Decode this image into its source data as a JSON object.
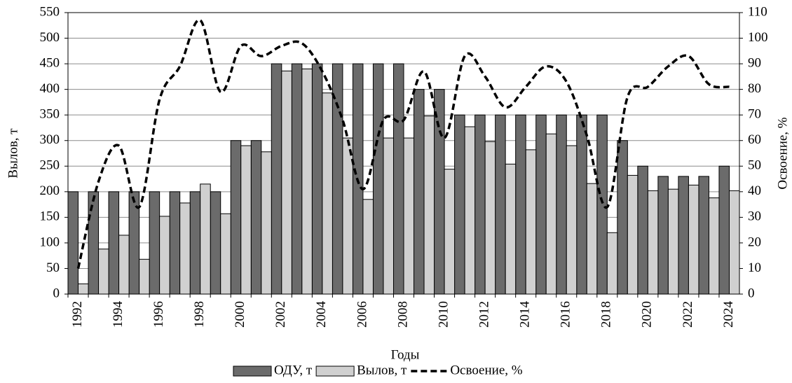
{
  "chart_data": {
    "type": "bar",
    "x_label": "Годы",
    "y_label": "Вылов, т",
    "y2_label": "Освоение, %",
    "categories": [
      "1992",
      null,
      "1994",
      null,
      "1996",
      null,
      "1998",
      null,
      "2000",
      null,
      "2002",
      null,
      "2004",
      null,
      "2006",
      null,
      "2008",
      null,
      "2010",
      null,
      "2012",
      null,
      "2014",
      null,
      "2016",
      null,
      "2018",
      null,
      "2020",
      null,
      "2022",
      null,
      "2024"
    ],
    "series": [
      {
        "name": "ОДУ, т",
        "color": "#6b6b6b",
        "type": "bar",
        "values": [
          200,
          200,
          200,
          200,
          200,
          200,
          200,
          200,
          300,
          300,
          450,
          450,
          450,
          450,
          450,
          450,
          450,
          400,
          400,
          350,
          350,
          350,
          350,
          350,
          350,
          350,
          350,
          300,
          250,
          230,
          230,
          230,
          250
        ]
      },
      {
        "name": "Вылов, т",
        "color": "#d0d0d0",
        "type": "bar",
        "values": [
          20,
          88,
          115,
          68,
          152,
          178,
          215,
          157,
          290,
          278,
          436,
          440,
          393,
          305,
          185,
          305,
          305,
          348,
          244,
          327,
          298,
          254,
          282,
          313,
          290,
          216,
          120,
          232,
          202,
          205,
          213,
          188,
          202
        ]
      },
      {
        "name": "Освоение, %",
        "color": "#000000",
        "type": "line",
        "axis": "y2",
        "values": [
          10,
          44,
          58,
          34,
          76,
          89,
          107,
          79,
          97,
          93,
          97,
          98,
          87,
          68,
          41,
          68,
          68,
          87,
          61,
          93,
          85,
          73,
          81,
          89,
          83,
          62,
          34,
          77,
          81,
          89,
          93,
          82,
          81
        ]
      }
    ],
    "ylim": [
      0,
      550
    ],
    "yticks": [
      0,
      50,
      100,
      150,
      200,
      250,
      300,
      350,
      400,
      450,
      500,
      550
    ],
    "y2lim": [
      0,
      110
    ],
    "y2ticks": [
      0,
      10,
      20,
      30,
      40,
      50,
      60,
      70,
      80,
      90,
      100,
      110
    ],
    "grid": true
  }
}
